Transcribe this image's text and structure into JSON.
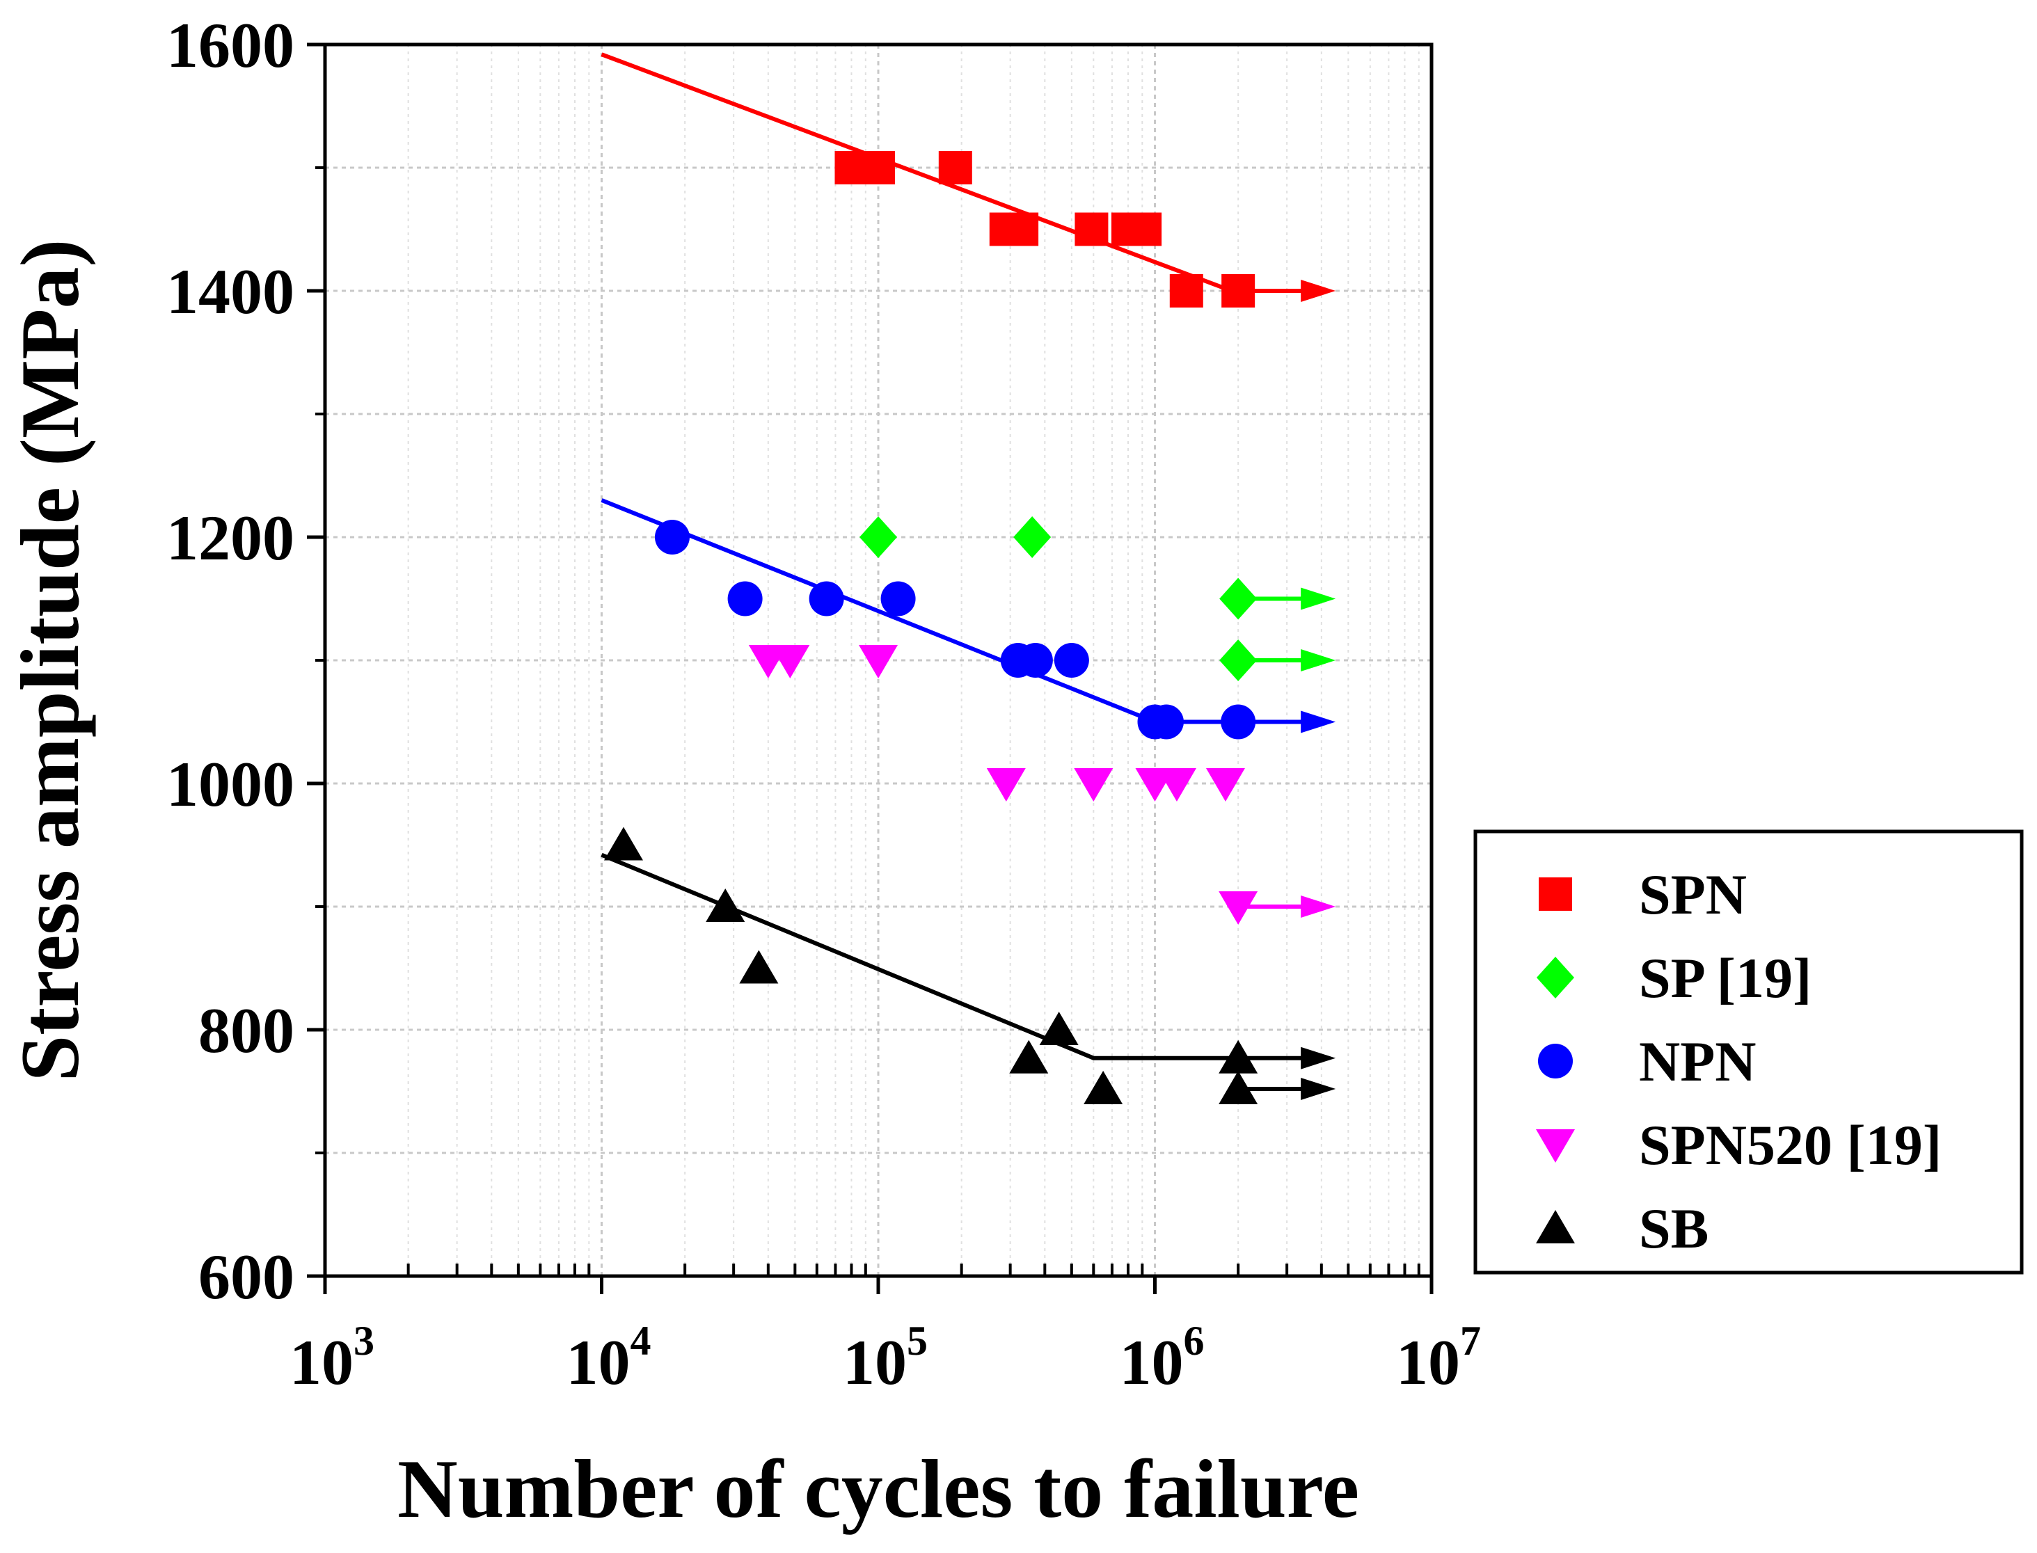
{
  "chart_data": {
    "type": "scatter",
    "xscale": "log",
    "xlabel": "Number of cycles to failure",
    "ylabel": "Stress amplitude (MPa)",
    "xlim": [
      1000,
      10000000
    ],
    "ylim": [
      600,
      1600
    ],
    "grid": true,
    "legend_position": "right",
    "x_ticks": [
      {
        "value": 1000,
        "base": "10",
        "exp": "3"
      },
      {
        "value": 10000,
        "base": "10",
        "exp": "4"
      },
      {
        "value": 100000,
        "base": "10",
        "exp": "5"
      },
      {
        "value": 1000000,
        "base": "10",
        "exp": "6"
      },
      {
        "value": 10000000,
        "base": "10",
        "exp": "7"
      }
    ],
    "y_ticks": [
      {
        "value": 600,
        "label": "600"
      },
      {
        "value": 800,
        "label": "800"
      },
      {
        "value": 1000,
        "label": "1000"
      },
      {
        "value": 1200,
        "label": "1200"
      },
      {
        "value": 1400,
        "label": "1400"
      },
      {
        "value": 1600,
        "label": "1600"
      }
    ],
    "series": [
      {
        "name": "SPN",
        "marker": "square",
        "color": "#ff0000",
        "points": [
          [
            80000,
            1500
          ],
          [
            100000,
            1500
          ],
          [
            190000,
            1500
          ],
          [
            290000,
            1450
          ],
          [
            330000,
            1450
          ],
          [
            590000,
            1450
          ],
          [
            800000,
            1450
          ],
          [
            920000,
            1450
          ],
          [
            1300000,
            1400
          ],
          [
            2000000,
            1400
          ]
        ],
        "runouts": [
          [
            2000000,
            1400
          ]
        ],
        "fit": [
          [
            10000,
            1592
          ],
          [
            2000000,
            1398
          ]
        ]
      },
      {
        "name": "SP [19]",
        "marker": "diamond",
        "color": "#00ff00",
        "points": [
          [
            100000,
            1200
          ],
          [
            360000,
            1200
          ],
          [
            2000000,
            1150
          ],
          [
            2000000,
            1100
          ]
        ],
        "runouts": [
          [
            2000000,
            1150
          ],
          [
            2000000,
            1100
          ]
        ],
        "fit": []
      },
      {
        "name": "NPN",
        "marker": "circle",
        "color": "#0000ff",
        "points": [
          [
            18000,
            1200
          ],
          [
            33000,
            1150
          ],
          [
            65000,
            1150
          ],
          [
            118000,
            1150
          ],
          [
            320000,
            1100
          ],
          [
            370000,
            1100
          ],
          [
            500000,
            1100
          ],
          [
            1000000,
            1050
          ],
          [
            1100000,
            1050
          ],
          [
            2000000,
            1050
          ]
        ],
        "runouts": [
          [
            2000000,
            1050
          ]
        ],
        "fit": [
          [
            10000,
            1230
          ],
          [
            1000000,
            1050
          ],
          [
            2000000,
            1050
          ]
        ]
      },
      {
        "name": "SPN520 [19]",
        "marker": "triangle-down",
        "color": "#ff00ff",
        "points": [
          [
            40000,
            1100
          ],
          [
            48000,
            1100
          ],
          [
            100000,
            1100
          ],
          [
            290000,
            1000
          ],
          [
            600000,
            1000
          ],
          [
            1000000,
            1000
          ],
          [
            1200000,
            1000
          ],
          [
            1800000,
            1000
          ],
          [
            2000000,
            900
          ]
        ],
        "runouts": [
          [
            2000000,
            900
          ]
        ],
        "fit": []
      },
      {
        "name": "SB",
        "marker": "triangle-up",
        "color": "#000000",
        "points": [
          [
            12000,
            950
          ],
          [
            28000,
            900
          ],
          [
            37000,
            850
          ],
          [
            350000,
            777
          ],
          [
            450000,
            800
          ],
          [
            650000,
            752
          ],
          [
            2000000,
            777
          ],
          [
            2000000,
            752
          ]
        ],
        "runouts": [
          [
            2000000,
            777
          ],
          [
            2000000,
            752
          ]
        ],
        "fit": [
          [
            10000,
            942
          ],
          [
            600000,
            777
          ],
          [
            2000000,
            777
          ]
        ]
      }
    ],
    "runout_end_x": 4500000
  }
}
